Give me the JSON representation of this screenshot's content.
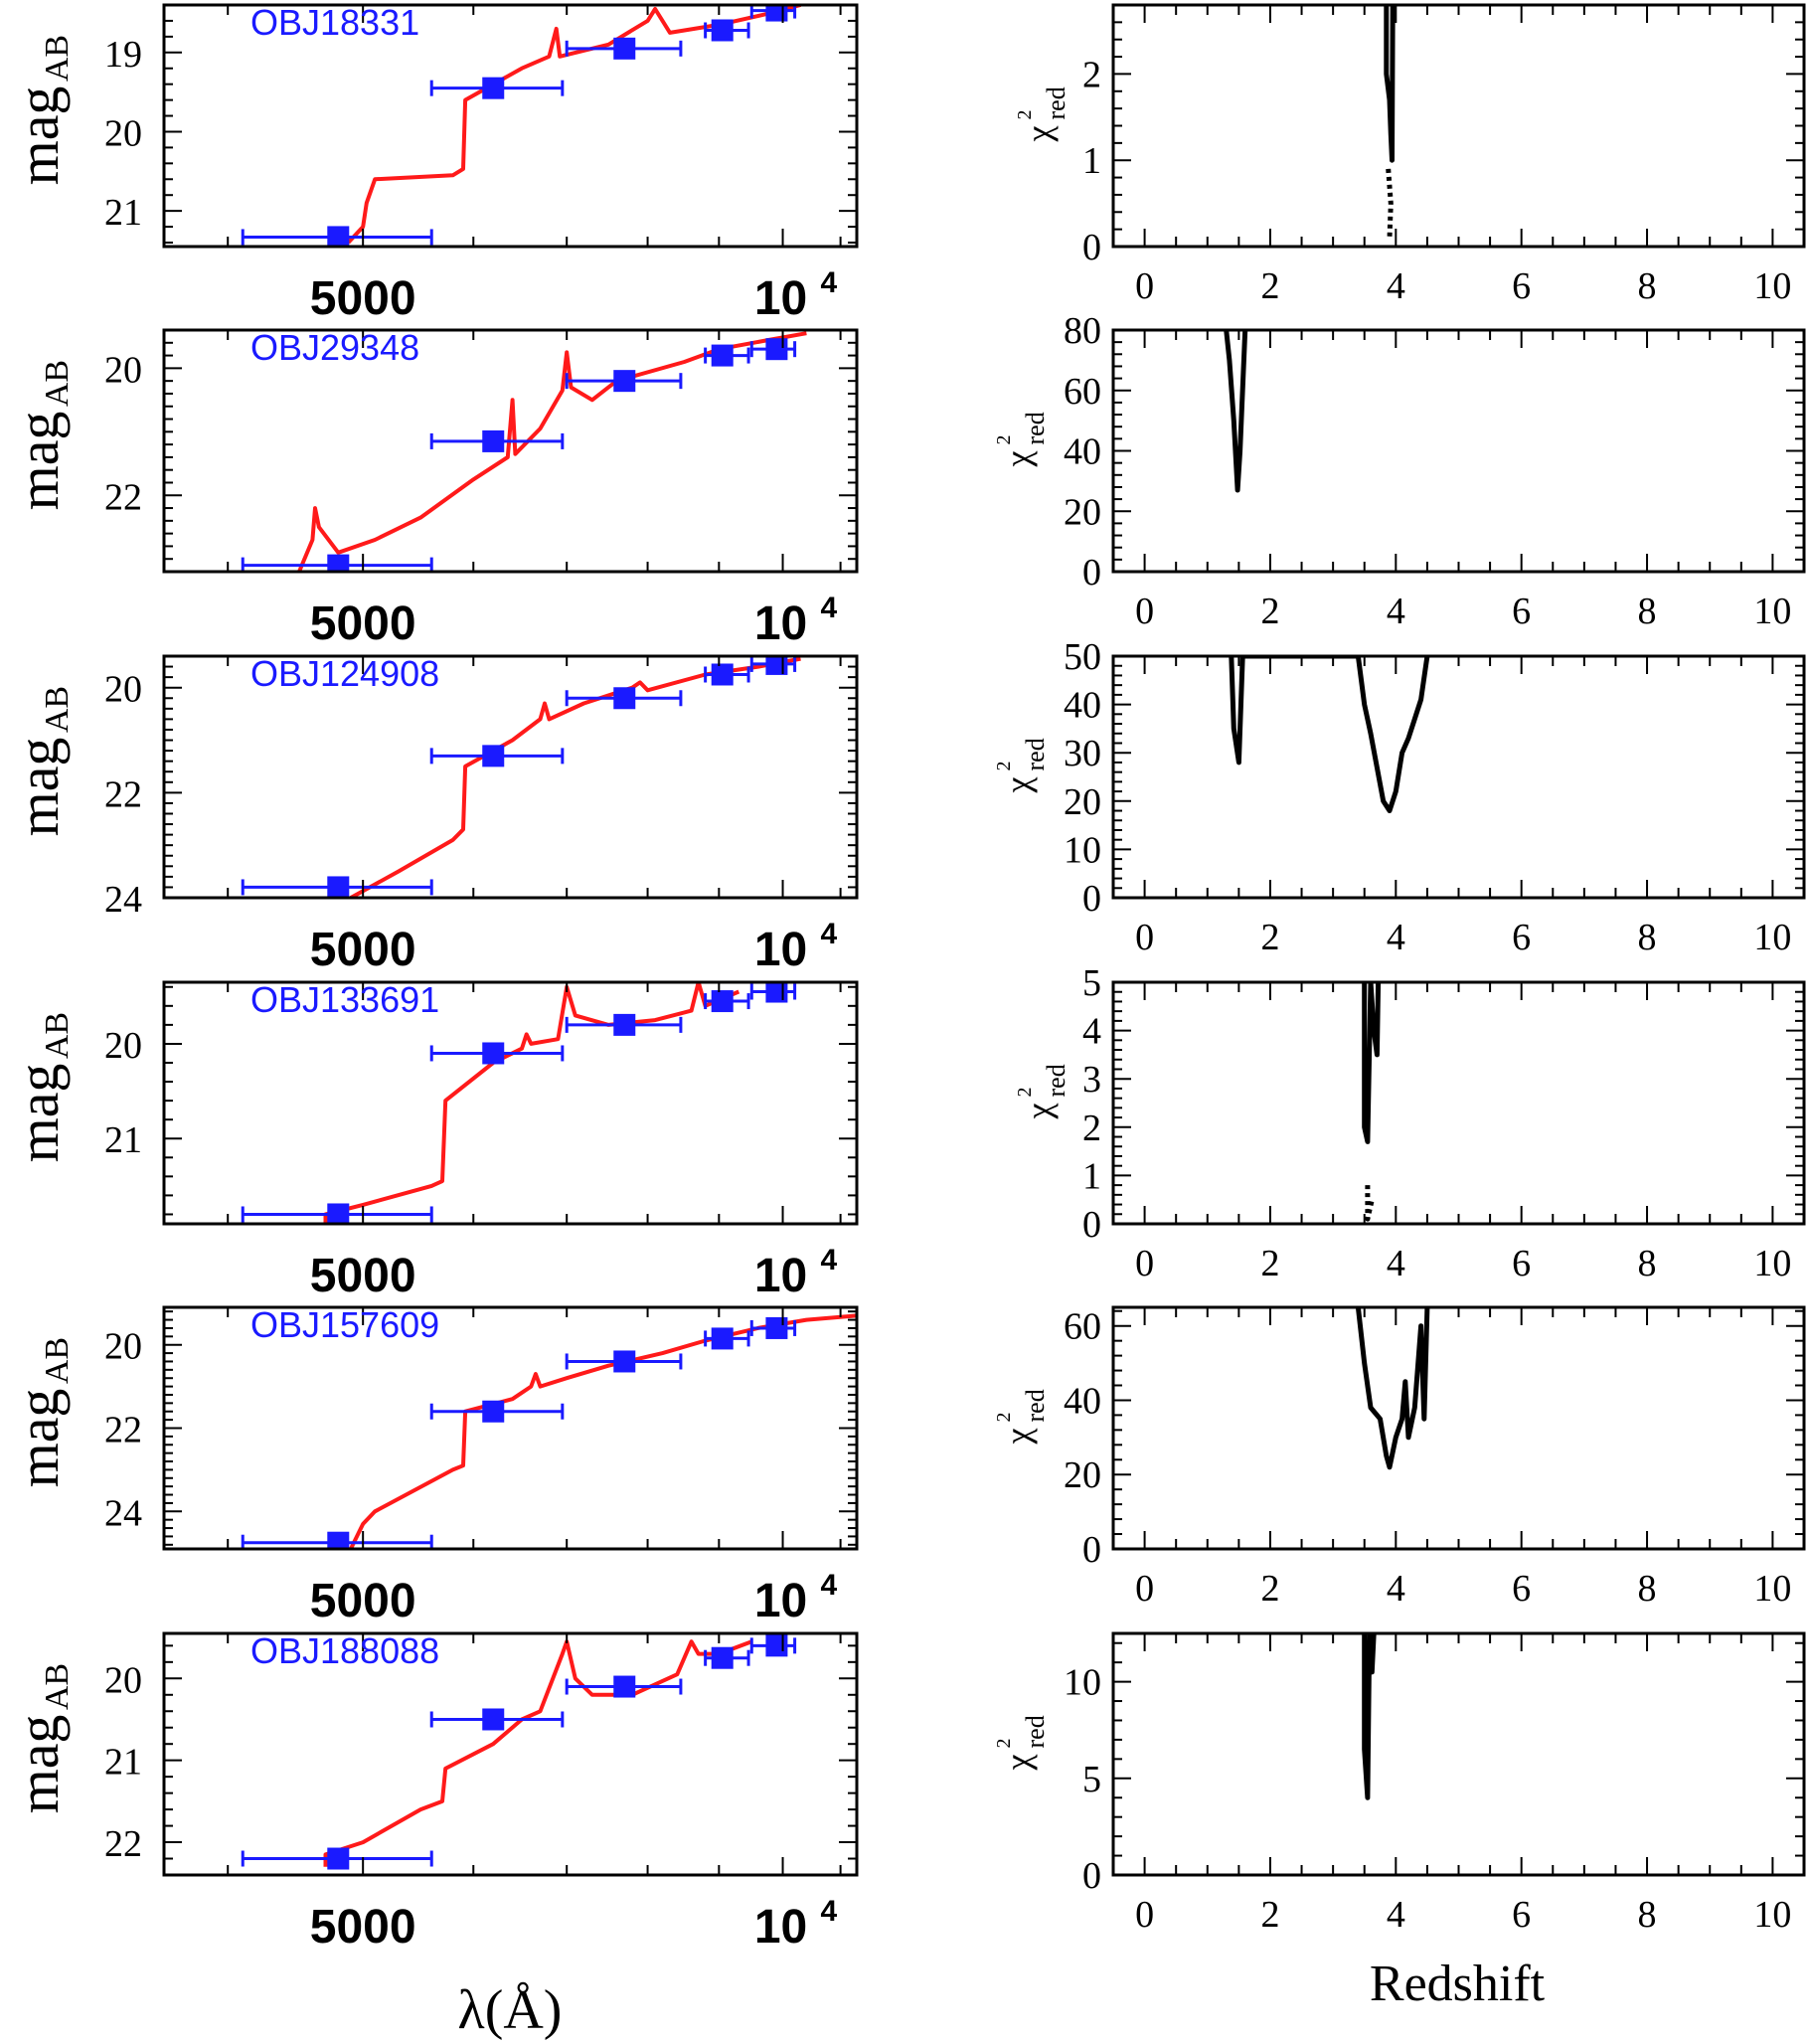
{
  "colors": {
    "model": "#ff1a1a",
    "photometry": "#1a1aff",
    "chi2": "#000000"
  },
  "sed_axes": {
    "xlabel": "λ(Å)",
    "ylabel_main": "mag",
    "ylabel_sub": "AB",
    "xtick_5000": "5000",
    "xtick_1e4_base": "10",
    "xtick_1e4_exp": "4",
    "x_scale": "log"
  },
  "chi_axes": {
    "xlabel": "Redshift",
    "ylabel_main": "χ",
    "ylabel_sup": "2",
    "ylabel_sub": "red",
    "xlim": [
      -0.5,
      10.5
    ],
    "xticks": [
      0,
      2,
      4,
      6,
      8,
      10
    ]
  },
  "chart_data": [
    {
      "object": "OBJ18331",
      "sed": {
        "type": "scatter",
        "xlim": [
          3600,
          11300
        ],
        "ylim": [
          21.45,
          18.4
        ],
        "yticks": [
          19,
          20,
          21
        ],
        "photometry": [
          {
            "x": 4800,
            "xerr": [
              4100,
              5600
            ],
            "y": 21.33
          },
          {
            "x": 6200,
            "xerr": [
              5600,
              6950
            ],
            "y": 19.45
          },
          {
            "x": 7700,
            "xerr": [
              7000,
              8450
            ],
            "y": 18.95
          },
          {
            "x": 9050,
            "xerr": [
              8800,
              9450
            ],
            "y": 18.72
          },
          {
            "x": 9900,
            "xerr": [
              9500,
              10200
            ],
            "y": 18.47
          }
        ],
        "model": [
          [
            4880,
            21.4
          ],
          [
            5000,
            21.2
          ],
          [
            5030,
            20.9
          ],
          [
            5100,
            20.6
          ],
          [
            5800,
            20.55
          ],
          [
            5900,
            20.47
          ],
          [
            5920,
            19.6
          ],
          [
            6500,
            19.2
          ],
          [
            6800,
            19.05
          ],
          [
            6880,
            18.7
          ],
          [
            6920,
            19.05
          ],
          [
            7500,
            18.9
          ],
          [
            8000,
            18.6
          ],
          [
            8100,
            18.45
          ],
          [
            8300,
            18.75
          ],
          [
            9000,
            18.65
          ],
          [
            9700,
            18.52
          ],
          [
            10300,
            18.4
          ]
        ]
      },
      "chi2": {
        "type": "line",
        "ylim": [
          0,
          2.8
        ],
        "yticks": [
          0,
          1,
          2
        ],
        "curve": [
          [
            3.85,
            2.8
          ],
          [
            3.85,
            2.0
          ],
          [
            3.9,
            1.7
          ],
          [
            3.92,
            1.3
          ],
          [
            3.94,
            1.0
          ],
          [
            3.95,
            2.8
          ]
        ],
        "dashed": [
          [
            3.88,
            0.9
          ],
          [
            3.92,
            0.5
          ],
          [
            3.9,
            0.1
          ]
        ]
      }
    },
    {
      "object": "OBJ29348",
      "sed": {
        "type": "scatter",
        "xlim": [
          3600,
          11300
        ],
        "ylim": [
          23.2,
          19.4
        ],
        "yticks": [
          20,
          22
        ],
        "photometry": [
          {
            "x": 4800,
            "xerr": [
              4100,
              5600
            ],
            "y": 23.1
          },
          {
            "x": 6200,
            "xerr": [
              5600,
              6950
            ],
            "y": 21.15
          },
          {
            "x": 7700,
            "xerr": [
              7000,
              8450
            ],
            "y": 20.2
          },
          {
            "x": 9050,
            "xerr": [
              8800,
              9450
            ],
            "y": 19.8
          },
          {
            "x": 9900,
            "xerr": [
              9500,
              10200
            ],
            "y": 19.7
          }
        ],
        "model": [
          [
            4500,
            23.2
          ],
          [
            4600,
            22.7
          ],
          [
            4620,
            22.2
          ],
          [
            4650,
            22.5
          ],
          [
            4800,
            22.9
          ],
          [
            5100,
            22.7
          ],
          [
            5500,
            22.35
          ],
          [
            6000,
            21.75
          ],
          [
            6350,
            21.4
          ],
          [
            6400,
            20.5
          ],
          [
            6430,
            21.35
          ],
          [
            6700,
            20.95
          ],
          [
            6950,
            20.35
          ],
          [
            7000,
            19.75
          ],
          [
            7050,
            20.3
          ],
          [
            7300,
            20.5
          ],
          [
            7600,
            20.2
          ],
          [
            8500,
            19.9
          ],
          [
            9000,
            19.7
          ],
          [
            9800,
            19.55
          ],
          [
            10400,
            19.45
          ]
        ]
      },
      "chi2": {
        "type": "line",
        "ylim": [
          0,
          80
        ],
        "yticks": [
          0,
          20,
          40,
          60,
          80
        ],
        "curve": [
          [
            1.3,
            80
          ],
          [
            1.35,
            70
          ],
          [
            1.42,
            50
          ],
          [
            1.48,
            27
          ],
          [
            1.52,
            40
          ],
          [
            1.55,
            55
          ],
          [
            1.6,
            80
          ]
        ],
        "dashed": []
      }
    },
    {
      "object": "OBJ124908",
      "sed": {
        "type": "scatter",
        "xlim": [
          3600,
          11300
        ],
        "ylim": [
          24.0,
          19.4
        ],
        "yticks": [
          20,
          22,
          24
        ],
        "photometry": [
          {
            "x": 4800,
            "xerr": [
              4100,
              5600
            ],
            "y": 23.8
          },
          {
            "x": 6200,
            "xerr": [
              5600,
              6950
            ],
            "y": 21.3
          },
          {
            "x": 7700,
            "xerr": [
              7000,
              8450
            ],
            "y": 20.2
          },
          {
            "x": 9050,
            "xerr": [
              8800,
              9450
            ],
            "y": 19.75
          },
          {
            "x": 9900,
            "xerr": [
              9500,
              10200
            ],
            "y": 19.55
          }
        ],
        "model": [
          [
            4900,
            24.0
          ],
          [
            5300,
            23.5
          ],
          [
            5800,
            22.9
          ],
          [
            5900,
            22.7
          ],
          [
            5920,
            21.5
          ],
          [
            6400,
            21.0
          ],
          [
            6700,
            20.6
          ],
          [
            6750,
            20.3
          ],
          [
            6800,
            20.6
          ],
          [
            7200,
            20.3
          ],
          [
            7800,
            20.0
          ],
          [
            7900,
            19.9
          ],
          [
            8000,
            20.05
          ],
          [
            8800,
            19.75
          ],
          [
            9600,
            19.6
          ],
          [
            10300,
            19.45
          ]
        ]
      },
      "chi2": {
        "type": "line",
        "ylim": [
          0,
          50
        ],
        "yticks": [
          0,
          10,
          20,
          30,
          40,
          50
        ],
        "curve": [
          [
            1.38,
            50
          ],
          [
            1.42,
            35
          ],
          [
            1.5,
            28
          ],
          [
            1.52,
            35
          ],
          [
            1.56,
            50
          ],
          [
            3.4,
            50
          ],
          [
            3.5,
            40
          ],
          [
            3.6,
            34
          ],
          [
            3.8,
            20
          ],
          [
            3.9,
            18
          ],
          [
            4.0,
            22
          ],
          [
            4.1,
            30
          ],
          [
            4.2,
            33
          ],
          [
            4.3,
            37
          ],
          [
            4.4,
            41
          ],
          [
            4.5,
            50
          ]
        ],
        "dashed": []
      }
    },
    {
      "object": "OBJ133691",
      "sed": {
        "type": "scatter",
        "xlim": [
          3600,
          11300
        ],
        "ylim": [
          21.9,
          19.35
        ],
        "yticks": [
          20,
          21
        ],
        "photometry": [
          {
            "x": 4800,
            "xerr": [
              4100,
              5600
            ],
            "y": 21.8
          },
          {
            "x": 6200,
            "xerr": [
              5600,
              6950
            ],
            "y": 20.1
          },
          {
            "x": 7700,
            "xerr": [
              7000,
              8450
            ],
            "y": 19.8
          },
          {
            "x": 9050,
            "xerr": [
              8800,
              9450
            ],
            "y": 19.55
          },
          {
            "x": 9900,
            "xerr": [
              9500,
              10200
            ],
            "y": 19.45
          }
        ],
        "model": [
          [
            4700,
            21.9
          ],
          [
            4700,
            21.8
          ],
          [
            5000,
            21.7
          ],
          [
            5600,
            21.5
          ],
          [
            5700,
            21.45
          ],
          [
            5730,
            20.6
          ],
          [
            6200,
            20.2
          ],
          [
            6500,
            20.05
          ],
          [
            6550,
            19.9
          ],
          [
            6600,
            20.0
          ],
          [
            6900,
            19.95
          ],
          [
            7000,
            19.4
          ],
          [
            7100,
            19.7
          ],
          [
            7500,
            19.8
          ],
          [
            8100,
            19.75
          ],
          [
            8600,
            19.65
          ],
          [
            8700,
            19.35
          ],
          [
            8800,
            19.6
          ],
          [
            9300,
            19.45
          ]
        ]
      },
      "chi2": {
        "type": "line",
        "ylim": [
          0,
          5
        ],
        "yticks": [
          0,
          1,
          2,
          3,
          4,
          5
        ],
        "curve": [
          [
            3.5,
            5
          ],
          [
            3.5,
            2.0
          ],
          [
            3.55,
            1.7
          ],
          [
            3.6,
            5
          ],
          [
            3.65,
            4.0
          ],
          [
            3.7,
            3.5
          ],
          [
            3.72,
            5
          ]
        ],
        "dashed": [
          [
            3.55,
            0.8
          ],
          [
            3.55,
            0.1
          ],
          [
            3.62,
            0.5
          ]
        ]
      }
    },
    {
      "object": "OBJ157609",
      "sed": {
        "type": "scatter",
        "xlim": [
          3600,
          11300
        ],
        "ylim": [
          24.9,
          19.1
        ],
        "yticks": [
          20,
          22,
          24
        ],
        "photometry": [
          {
            "x": 4800,
            "xerr": [
              4100,
              5600
            ],
            "y": 24.75
          },
          {
            "x": 6200,
            "xerr": [
              5600,
              6950
            ],
            "y": 21.6
          },
          {
            "x": 7700,
            "xerr": [
              7000,
              8450
            ],
            "y": 20.4
          },
          {
            "x": 9050,
            "xerr": [
              8800,
              9450
            ],
            "y": 19.85
          },
          {
            "x": 9900,
            "xerr": [
              9500,
              10200
            ],
            "y": 19.6
          }
        ],
        "model": [
          [
            4900,
            24.9
          ],
          [
            5000,
            24.3
          ],
          [
            5100,
            24.0
          ],
          [
            5800,
            23.0
          ],
          [
            5900,
            22.9
          ],
          [
            5920,
            21.6
          ],
          [
            6400,
            21.3
          ],
          [
            6600,
            21.0
          ],
          [
            6650,
            20.7
          ],
          [
            6700,
            21.0
          ],
          [
            7000,
            20.8
          ],
          [
            7500,
            20.5
          ],
          [
            8200,
            20.2
          ],
          [
            8800,
            19.9
          ],
          [
            9600,
            19.6
          ],
          [
            10400,
            19.4
          ],
          [
            11300,
            19.3
          ]
        ]
      },
      "chi2": {
        "type": "line",
        "ylim": [
          0,
          65
        ],
        "yticks": [
          0,
          20,
          40,
          60
        ],
        "curve": [
          [
            3.4,
            65
          ],
          [
            3.5,
            50
          ],
          [
            3.6,
            38
          ],
          [
            3.75,
            35
          ],
          [
            3.85,
            25
          ],
          [
            3.9,
            22
          ],
          [
            4.0,
            30
          ],
          [
            4.1,
            35
          ],
          [
            4.15,
            45
          ],
          [
            4.2,
            30
          ],
          [
            4.3,
            38
          ],
          [
            4.4,
            60
          ],
          [
            4.45,
            35
          ],
          [
            4.5,
            65
          ]
        ],
        "dashed": []
      }
    },
    {
      "object": "OBJ188088",
      "sed": {
        "type": "scatter",
        "xlim": [
          3600,
          11300
        ],
        "ylim": [
          22.4,
          19.45
        ],
        "yticks": [
          20,
          21,
          22
        ],
        "photometry": [
          {
            "x": 4800,
            "xerr": [
              4100,
              5600
            ],
            "y": 22.2
          },
          {
            "x": 6200,
            "xerr": [
              5600,
              6950
            ],
            "y": 20.5
          },
          {
            "x": 7700,
            "xerr": [
              7000,
              8450
            ],
            "y": 20.1
          },
          {
            "x": 9050,
            "xerr": [
              8800,
              9450
            ],
            "y": 19.75
          },
          {
            "x": 9900,
            "xerr": [
              9500,
              10200
            ],
            "y": 19.6
          }
        ],
        "model": [
          [
            4700,
            22.3
          ],
          [
            4700,
            22.15
          ],
          [
            5000,
            22.0
          ],
          [
            5500,
            21.6
          ],
          [
            5700,
            21.5
          ],
          [
            5730,
            21.1
          ],
          [
            6200,
            20.8
          ],
          [
            6500,
            20.5
          ],
          [
            6700,
            20.4
          ],
          [
            6950,
            19.7
          ],
          [
            7000,
            19.55
          ],
          [
            7100,
            20.0
          ],
          [
            7300,
            20.2
          ],
          [
            7800,
            20.2
          ],
          [
            8400,
            19.95
          ],
          [
            8600,
            19.55
          ],
          [
            8700,
            19.7
          ],
          [
            9000,
            19.7
          ],
          [
            9500,
            19.55
          ]
        ]
      },
      "chi2": {
        "type": "line",
        "ylim": [
          0,
          12.5
        ],
        "yticks": [
          0,
          5,
          10
        ],
        "curve": [
          [
            3.5,
            12.5
          ],
          [
            3.5,
            6.5
          ],
          [
            3.55,
            4.0
          ],
          [
            3.58,
            12.5
          ],
          [
            3.62,
            10.5
          ],
          [
            3.65,
            12.5
          ]
        ],
        "dashed": []
      }
    }
  ]
}
